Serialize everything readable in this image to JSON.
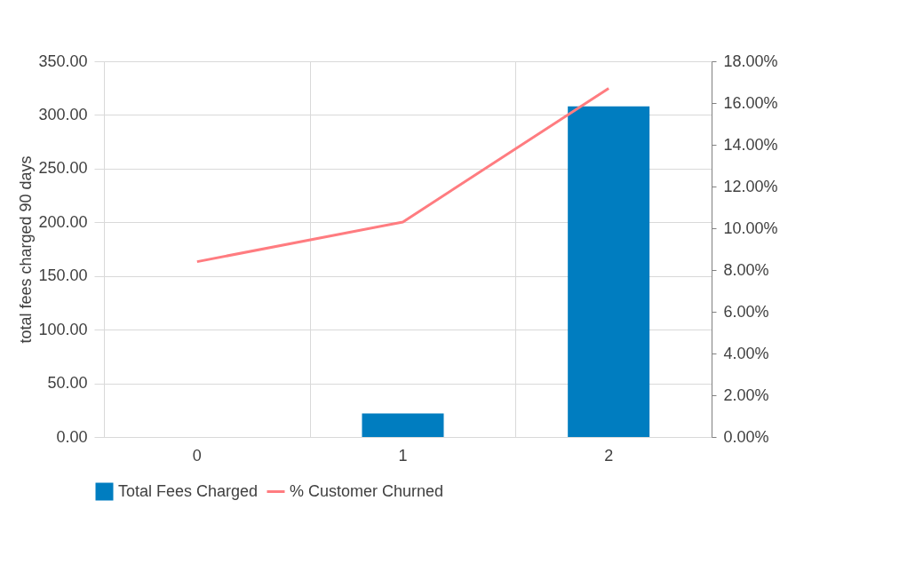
{
  "chart_data": {
    "type": "bar",
    "categories": [
      "0",
      "1",
      "2"
    ],
    "ylabel": "total fees charged 90 days",
    "series": [
      {
        "name": "Total Fees Charged",
        "color": "#007dc0",
        "values": [
          0,
          22,
          308
        ]
      },
      {
        "name": "% Customer Churned",
        "type": "line",
        "axis": "y2",
        "color": "#ff7c80",
        "values": [
          8.4,
          10.3,
          16.7
        ]
      }
    ],
    "ylim": [
      0,
      350
    ],
    "yticks": [
      {
        "value": 0,
        "label": "0.00"
      },
      {
        "value": 50,
        "label": "50.00"
      },
      {
        "value": 100,
        "label": "100.00"
      },
      {
        "value": 150,
        "label": "150.00"
      },
      {
        "value": 200,
        "label": "200.00"
      },
      {
        "value": 250,
        "label": "250.00"
      },
      {
        "value": 300,
        "label": "300.00"
      },
      {
        "value": 350,
        "label": "350.00"
      }
    ],
    "y2lim": [
      0,
      18
    ],
    "y2ticks": [
      {
        "value": 0,
        "label": "0.00%"
      },
      {
        "value": 2,
        "label": "2.00%"
      },
      {
        "value": 4,
        "label": "4.00%"
      },
      {
        "value": 6,
        "label": "6.00%"
      },
      {
        "value": 8,
        "label": "8.00%"
      },
      {
        "value": 10,
        "label": "10.00%"
      },
      {
        "value": 12,
        "label": "12.00%"
      },
      {
        "value": 14,
        "label": "14.00%"
      },
      {
        "value": 16,
        "label": "16.00%"
      },
      {
        "value": 18,
        "label": "18.00%"
      }
    ],
    "grid": true,
    "legend": "bottom"
  }
}
